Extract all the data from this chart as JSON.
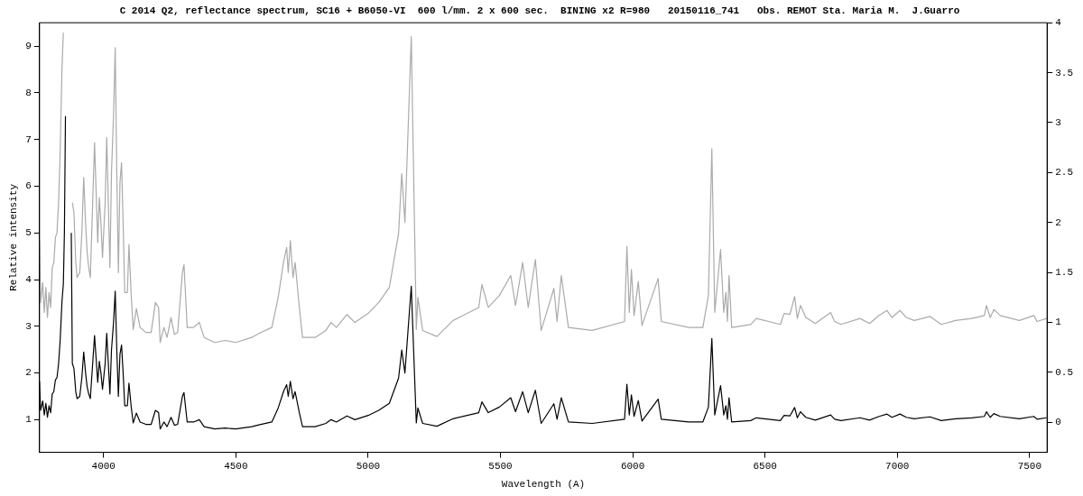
{
  "chart_data": {
    "type": "line",
    "title": "C 2014 Q2, reflectance spectrum, SC16 + B6050-VI  600 l/mm. 2 x 600 sec.  BINING x2 R=980   20150116_741   Obs. REMOT Sta. Maria M.  J.Guarro",
    "xlabel": "Wavelength (A)",
    "ylabel": "Relative intensity",
    "x": [
      3758,
      3762,
      3770,
      3776,
      3782,
      3788,
      3794,
      3800,
      3806,
      3812,
      3818,
      3824,
      3830,
      3836,
      3843,
      3848,
      3852,
      3856,
      3860,
      3866,
      3870,
      3874,
      3878,
      3882,
      3888,
      3895,
      3900,
      3910,
      3918,
      3925,
      3932,
      3938,
      3944,
      3950,
      3960,
      3966,
      3972,
      3978,
      3984,
      3990,
      3996,
      4006,
      4012,
      4018,
      4024,
      4030,
      4038,
      4044,
      4050,
      4056,
      4062,
      4068,
      4074,
      4080,
      4090,
      4096,
      4104,
      4112,
      4124,
      4138,
      4160,
      4180,
      4196,
      4208,
      4214,
      4228,
      4240,
      4255,
      4268,
      4280,
      4298,
      4304,
      4316,
      4340,
      4362,
      4380,
      4420,
      4460,
      4500,
      4560,
      4587,
      4636,
      4660,
      4680,
      4692,
      4698,
      4706,
      4716,
      4724,
      4740,
      4752,
      4800,
      4840,
      4860,
      4880,
      4920,
      4950,
      5000,
      5040,
      5080,
      5115,
      5127,
      5139,
      5163,
      5182,
      5188,
      5206,
      5260,
      5321,
      5418,
      5430,
      5454,
      5496,
      5539,
      5557,
      5584,
      5605,
      5632,
      5654,
      5702,
      5714,
      5730,
      5757,
      5847,
      5969,
      5978,
      5987,
      5995,
      6005,
      6021,
      6035,
      6096,
      6108,
      6211,
      6265,
      6286,
      6299,
      6310,
      6332,
      6344,
      6352,
      6358,
      6364,
      6374,
      6446,
      6467,
      6558,
      6572,
      6594,
      6612,
      6622,
      6634,
      6654,
      6690,
      6748,
      6763,
      6787,
      6859,
      6895,
      6931,
      6961,
      6980,
      7010,
      7034,
      7064,
      7124,
      7166,
      7220,
      7281,
      7329,
      7337,
      7351,
      7365,
      7389,
      7461,
      7516,
      7528,
      7564
    ],
    "series": [
      {
        "color": "#000000",
        "values": [
          1.82,
          1.2,
          1.4,
          1.1,
          1.35,
          1.05,
          1.3,
          1.15,
          1.55,
          1.6,
          1.85,
          1.9,
          2.2,
          2.7,
          3.55,
          3.9,
          5.0,
          7.5,
          null,
          null,
          null,
          null,
          5.0,
          2.2,
          2.1,
          1.6,
          1.45,
          1.5,
          1.9,
          2.45,
          2.0,
          1.7,
          1.55,
          1.45,
          2.3,
          2.8,
          2.3,
          1.8,
          2.25,
          2.0,
          1.65,
          2.2,
          2.85,
          2.2,
          1.55,
          2.5,
          3.1,
          3.75,
          2.5,
          1.5,
          2.4,
          2.6,
          2.0,
          1.3,
          1.3,
          1.78,
          1.3,
          0.93,
          1.14,
          0.95,
          0.9,
          0.9,
          1.2,
          1.15,
          0.8,
          0.95,
          0.85,
          1.05,
          0.88,
          0.9,
          1.5,
          1.58,
          0.95,
          0.95,
          1.0,
          0.85,
          0.8,
          0.82,
          0.8,
          0.85,
          0.89,
          0.95,
          1.25,
          1.6,
          1.75,
          1.5,
          1.82,
          1.45,
          1.6,
          1.15,
          0.85,
          0.85,
          0.92,
          1.0,
          0.95,
          1.08,
          1.0,
          1.09,
          1.2,
          1.35,
          1.89,
          2.49,
          2.0,
          3.86,
          0.93,
          1.25,
          0.92,
          0.86,
          1.02,
          1.15,
          1.38,
          1.15,
          1.27,
          1.47,
          1.17,
          1.6,
          1.15,
          1.63,
          0.92,
          1.34,
          1.01,
          1.47,
          0.95,
          0.92,
          1.01,
          1.76,
          1.1,
          1.53,
          1.07,
          1.41,
          0.97,
          1.44,
          1.01,
          0.95,
          0.95,
          1.27,
          2.74,
          1.1,
          1.73,
          1.1,
          1.3,
          1.01,
          1.47,
          0.95,
          0.98,
          1.04,
          0.98,
          1.09,
          1.08,
          1.26,
          1.04,
          1.17,
          1.05,
          0.99,
          1.1,
          1.01,
          0.98,
          1.04,
          0.99,
          1.07,
          1.12,
          1.05,
          1.12,
          1.05,
          1.02,
          1.06,
          0.98,
          1.02,
          1.04,
          1.07,
          1.17,
          1.05,
          1.13,
          1.07,
          1.02,
          1.07,
          1.01,
          1.04
        ]
      },
      {
        "color": "#aaaaaa",
        "axis": "y2",
        "values": [
          1.82,
          1.2,
          1.4,
          1.1,
          1.35,
          1.05,
          1.3,
          1.15,
          1.55,
          1.6,
          1.85,
          1.9,
          2.2,
          2.7,
          3.55,
          3.9,
          null,
          null,
          null,
          null,
          null,
          null,
          null,
          2.2,
          2.1,
          1.6,
          1.45,
          1.5,
          1.9,
          2.45,
          2.0,
          1.7,
          1.55,
          1.45,
          2.3,
          2.8,
          2.3,
          1.8,
          2.25,
          2.0,
          1.65,
          2.2,
          2.85,
          2.2,
          1.55,
          2.5,
          3.1,
          3.75,
          2.5,
          1.5,
          2.4,
          2.6,
          2.0,
          1.3,
          1.3,
          1.78,
          1.3,
          0.93,
          1.14,
          0.95,
          0.9,
          0.9,
          1.2,
          1.15,
          0.8,
          0.95,
          0.85,
          1.05,
          0.88,
          0.9,
          1.5,
          1.58,
          0.95,
          0.95,
          1.0,
          0.85,
          0.8,
          0.82,
          0.8,
          0.85,
          0.89,
          0.95,
          1.25,
          1.6,
          1.75,
          1.5,
          1.82,
          1.45,
          1.6,
          1.15,
          0.85,
          0.85,
          0.92,
          1.0,
          0.95,
          1.08,
          1.0,
          1.09,
          1.2,
          1.35,
          1.89,
          2.49,
          2.0,
          3.86,
          0.93,
          1.25,
          0.92,
          0.86,
          1.02,
          1.15,
          1.38,
          1.15,
          1.27,
          1.47,
          1.17,
          1.6,
          1.15,
          1.63,
          0.92,
          1.34,
          1.01,
          1.47,
          0.95,
          0.92,
          1.01,
          1.76,
          1.1,
          1.53,
          1.07,
          1.41,
          0.97,
          1.44,
          1.01,
          0.95,
          0.95,
          1.27,
          2.74,
          1.1,
          1.73,
          1.1,
          1.3,
          1.01,
          1.47,
          0.95,
          0.98,
          1.04,
          0.98,
          1.09,
          1.08,
          1.26,
          1.04,
          1.17,
          1.05,
          0.99,
          1.1,
          1.01,
          0.98,
          1.04,
          0.99,
          1.07,
          1.12,
          1.05,
          1.12,
          1.05,
          1.02,
          1.06,
          0.98,
          1.02,
          1.04,
          1.07,
          1.17,
          1.05,
          1.13,
          1.07,
          1.02,
          1.07,
          1.01,
          1.04
        ]
      }
    ],
    "xlim": [
      3758,
      7566
    ],
    "xticks": [
      4000,
      4500,
      5000,
      5500,
      6000,
      6500,
      7000,
      7500
    ],
    "ylim": [
      0.3,
      9.5
    ],
    "yticks": [
      1,
      2,
      3,
      4,
      5,
      6,
      7,
      8,
      9
    ],
    "y2lim": [
      -0.3,
      4
    ],
    "y2ticks": [
      0,
      0.5,
      1,
      1.5,
      2,
      2.5,
      3,
      3.5,
      4
    ],
    "grid": false,
    "legend": false,
    "marker": "none",
    "line_style": "solid"
  }
}
